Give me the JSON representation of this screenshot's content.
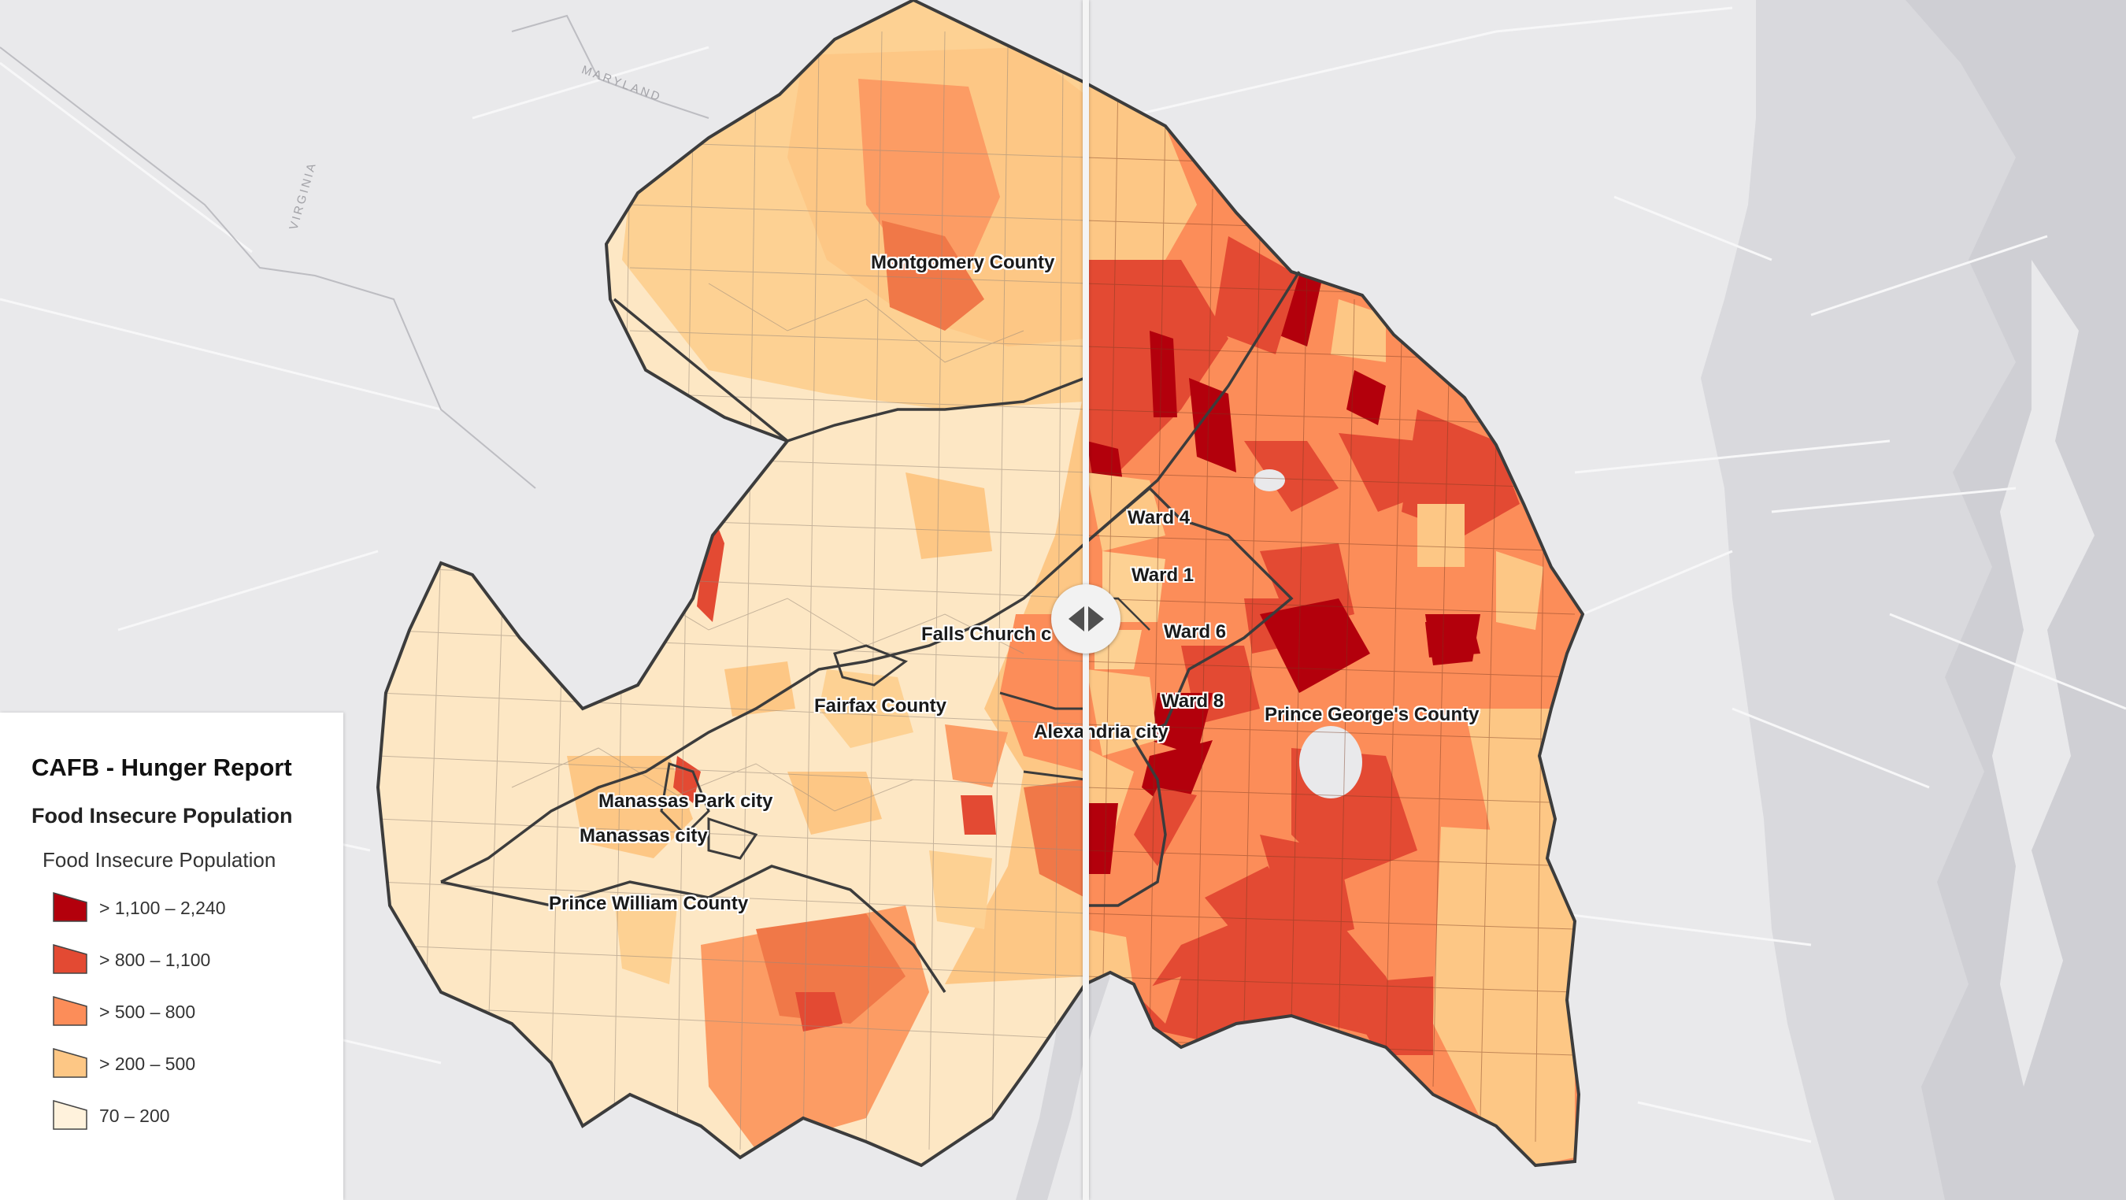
{
  "map": {
    "basemap_labels": [
      "MARYLAND",
      "VIRGINIA"
    ],
    "area_labels": {
      "montgomery": "Montgomery County",
      "ward4": "Ward 4",
      "ward1": "Ward 1",
      "ward6": "Ward 6",
      "ward8": "Ward 8",
      "falls_church": "Falls Church c",
      "fairfax": "Fairfax County",
      "alexandria": "Alexandria city",
      "prince_georges": "Prince George's County",
      "manassas_park": "Manassas Park city",
      "manassas": "Manassas city",
      "prince_william": "Prince William County"
    },
    "swipe_control": "swipe-handle"
  },
  "legend": {
    "title": "CAFB - Hunger Report",
    "layer": "Food Insecure Population",
    "field": "Food Insecure Population",
    "classes": [
      {
        "label": "> 1,100 – 2,240",
        "color": "#b3000c"
      },
      {
        "label": "> 800 – 1,100",
        "color": "#e34a33"
      },
      {
        "label": "> 500 – 800",
        "color": "#fc8d59"
      },
      {
        "label": "> 200 – 500",
        "color": "#fdc785"
      },
      {
        "label": "70 – 200",
        "color": "#fff2dc"
      }
    ]
  }
}
